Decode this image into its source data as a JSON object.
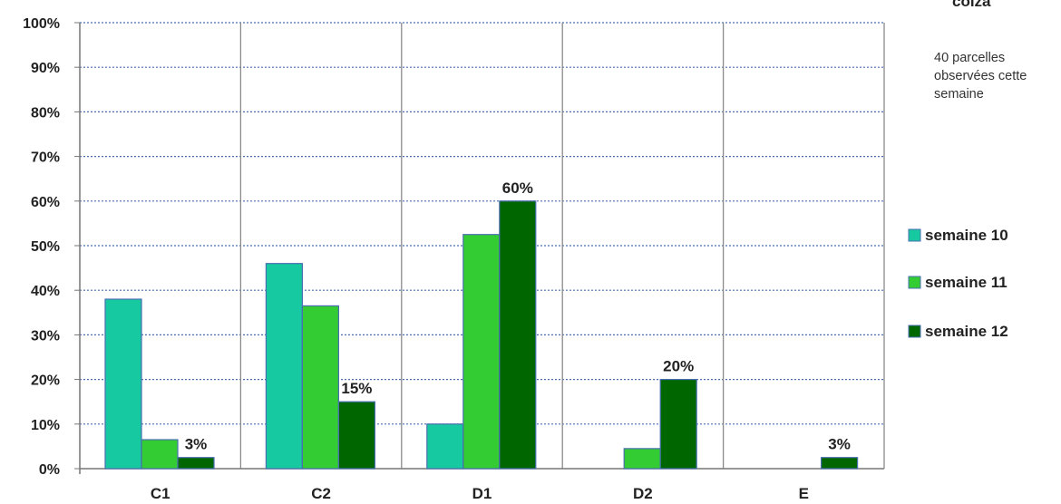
{
  "side_title": "colza",
  "side_note": "40 parcelles observées cette semaine",
  "chart_data": {
    "type": "bar",
    "categories": [
      "C1",
      "C2",
      "D1",
      "D2",
      "E"
    ],
    "series": [
      {
        "name": "semaine 10",
        "color": "#17c9a0",
        "values": [
          38,
          46,
          10,
          0,
          0
        ]
      },
      {
        "name": "semaine 11",
        "color": "#33cc33",
        "values": [
          6.5,
          36.5,
          52.5,
          4.5,
          0
        ]
      },
      {
        "name": "semaine 12",
        "color": "#006600",
        "values": [
          2.5,
          15,
          60,
          20,
          2.5
        ]
      }
    ],
    "data_labels": [
      {
        "series": 2,
        "category": 0,
        "text": "3%"
      },
      {
        "series": 2,
        "category": 1,
        "text": "15%"
      },
      {
        "series": 2,
        "category": 2,
        "text": "60%"
      },
      {
        "series": 2,
        "category": 3,
        "text": "20%"
      },
      {
        "series": 2,
        "category": 4,
        "text": "3%"
      }
    ],
    "y_ticks": [
      "0%",
      "10%",
      "20%",
      "30%",
      "40%",
      "50%",
      "60%",
      "70%",
      "80%",
      "90%",
      "100%"
    ],
    "ylim": [
      0,
      100
    ],
    "grid": true,
    "legend_position": "right"
  }
}
